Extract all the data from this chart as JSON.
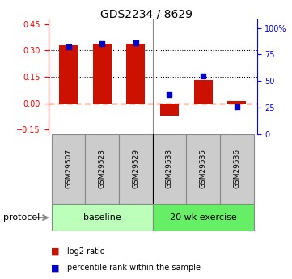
{
  "title": "GDS2234 / 8629",
  "samples": [
    "GSM29507",
    "GSM29523",
    "GSM29529",
    "GSM29533",
    "GSM29535",
    "GSM29536"
  ],
  "log2_ratio": [
    0.33,
    0.34,
    0.34,
    -0.07,
    0.13,
    0.01
  ],
  "percentile_rank": [
    82,
    85,
    86,
    37,
    55,
    26
  ],
  "bar_color": "#cc1100",
  "dot_color": "#0000cc",
  "ylim_left": [
    -0.175,
    0.475
  ],
  "ylim_right": [
    0,
    108
  ],
  "yticks_left": [
    -0.15,
    0.0,
    0.15,
    0.3,
    0.45
  ],
  "yticks_right": [
    0,
    25,
    50,
    75,
    100
  ],
  "ytick_labels_right": [
    "0",
    "25",
    "50",
    "75",
    "100%"
  ],
  "baseline_color": "#bbffbb",
  "exercise_color": "#66ee66",
  "sample_box_color": "#cccccc",
  "legend_items": [
    {
      "label": "log2 ratio",
      "color": "#cc1100"
    },
    {
      "label": "percentile rank within the sample",
      "color": "#0000cc"
    }
  ],
  "bar_width": 0.55
}
